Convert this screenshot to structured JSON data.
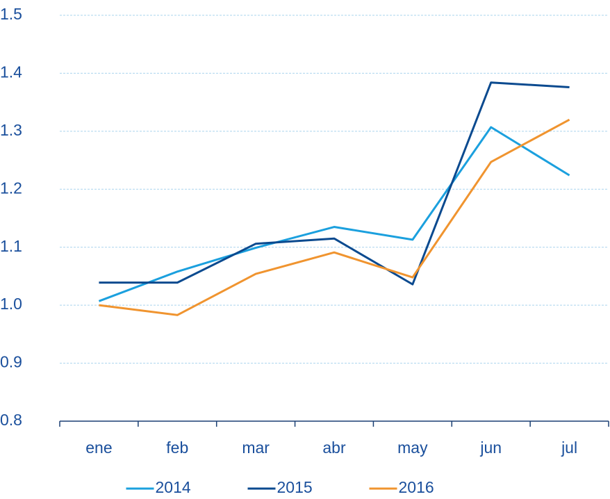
{
  "chart_data": {
    "type": "line",
    "categories": [
      "ene",
      "feb",
      "mar",
      "abr",
      "may",
      "jun",
      "jul"
    ],
    "series": [
      {
        "name": "2014",
        "color": "#1ba0de",
        "values": [
          1.007,
          1.058,
          1.099,
          1.135,
          1.113,
          1.307,
          1.224
        ]
      },
      {
        "name": "2015",
        "color": "#0b4a8f",
        "values": [
          1.039,
          1.039,
          1.106,
          1.115,
          1.036,
          1.384,
          1.376
        ]
      },
      {
        "name": "2016",
        "color": "#f0942f",
        "values": [
          1.0,
          0.983,
          1.054,
          1.091,
          1.048,
          1.247,
          1.32
        ]
      }
    ],
    "ylim": [
      0.8,
      1.5
    ],
    "yticks": [
      0.8,
      0.9,
      {
        "value": 1,
        "label": "1.0"
      },
      1.1,
      1.2,
      1.3,
      1.4,
      1.5
    ],
    "grid": true
  }
}
